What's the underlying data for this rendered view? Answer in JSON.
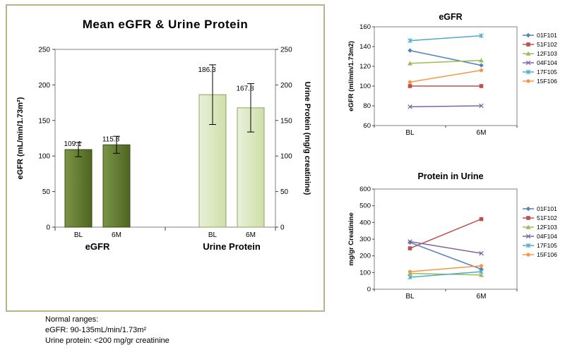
{
  "footnote": {
    "title": "Normal ranges:",
    "egfr_range": "eGFR: 90-135mL/min/1.73m²",
    "urine_range": "Urine protein: <200 mg/gr creatinine"
  },
  "chart_data": [
    {
      "id": "mean-egfr-urine-protein",
      "type": "bar",
      "title": "Mean eGFR & Urine Protein",
      "ylabel_left": "eGFR (mL/min/1.73m²)",
      "ylabel_right": "Urine Protein (mg/g creatinine)",
      "ylim": [
        0,
        250
      ],
      "yticks": [
        0,
        50,
        100,
        150,
        200,
        250
      ],
      "grid": false,
      "groups": [
        {
          "label": "eGFR",
          "fill_from": "#7b9547",
          "fill_to": "#4e6420",
          "border": "#3a4d15",
          "bars": [
            {
              "x": "BL",
              "value": 109.1,
              "err": 10
            },
            {
              "x": "6M",
              "value": 115.8,
              "err": 12
            }
          ]
        },
        {
          "label": "Urine Protein",
          "fill_from": "#e9f0d9",
          "fill_to": "#cedfa9",
          "border": "#8fa060",
          "bars": [
            {
              "x": "BL",
              "value": 186.3,
              "err": 42
            },
            {
              "x": "6M",
              "value": 167.8,
              "err": 34
            }
          ]
        }
      ]
    },
    {
      "id": "egfr-by-subject",
      "type": "line",
      "title": "eGFR",
      "ylabel": "eGFR (ml/min/1.73m2)",
      "ylim": [
        60,
        160
      ],
      "yticks": [
        60,
        80,
        100,
        120,
        140,
        160
      ],
      "categories": [
        "BL",
        "6M"
      ],
      "legend_position": "right",
      "series": [
        {
          "name": "01F101",
          "color": "#4F81BD",
          "marker": "diamond",
          "values": [
            136,
            121
          ]
        },
        {
          "name": "51F102",
          "color": "#C0504D",
          "marker": "square",
          "values": [
            100,
            100
          ]
        },
        {
          "name": "12F103",
          "color": "#9BBB59",
          "marker": "triangle",
          "values": [
            123,
            126
          ]
        },
        {
          "name": "04F104",
          "color": "#8064A2",
          "marker": "x",
          "values": [
            79,
            80
          ]
        },
        {
          "name": "17F105",
          "color": "#4BACC6",
          "marker": "asterisk",
          "values": [
            146,
            151
          ]
        },
        {
          "name": "15F106",
          "color": "#F79646",
          "marker": "circle",
          "values": [
            104,
            116
          ]
        }
      ]
    },
    {
      "id": "protein-in-urine-by-subject",
      "type": "line",
      "title": "Protein in Urine",
      "ylabel": "mg/gr Creatinine",
      "ylim": [
        0,
        600
      ],
      "yticks": [
        0,
        100,
        200,
        300,
        400,
        500,
        600
      ],
      "categories": [
        "BL",
        "6M"
      ],
      "legend_position": "right",
      "series": [
        {
          "name": "01F101",
          "color": "#4F81BD",
          "marker": "diamond",
          "values": [
            280,
            120
          ]
        },
        {
          "name": "51F102",
          "color": "#C0504D",
          "marker": "square",
          "values": [
            245,
            420
          ]
        },
        {
          "name": "12F103",
          "color": "#9BBB59",
          "marker": "triangle",
          "values": [
            95,
            85
          ]
        },
        {
          "name": "04F104",
          "color": "#8064A2",
          "marker": "x",
          "values": [
            285,
            215
          ]
        },
        {
          "name": "17F105",
          "color": "#4BACC6",
          "marker": "asterisk",
          "values": [
            72,
            105
          ]
        },
        {
          "name": "15F106",
          "color": "#F79646",
          "marker": "circle",
          "values": [
            105,
            140
          ]
        }
      ]
    }
  ]
}
